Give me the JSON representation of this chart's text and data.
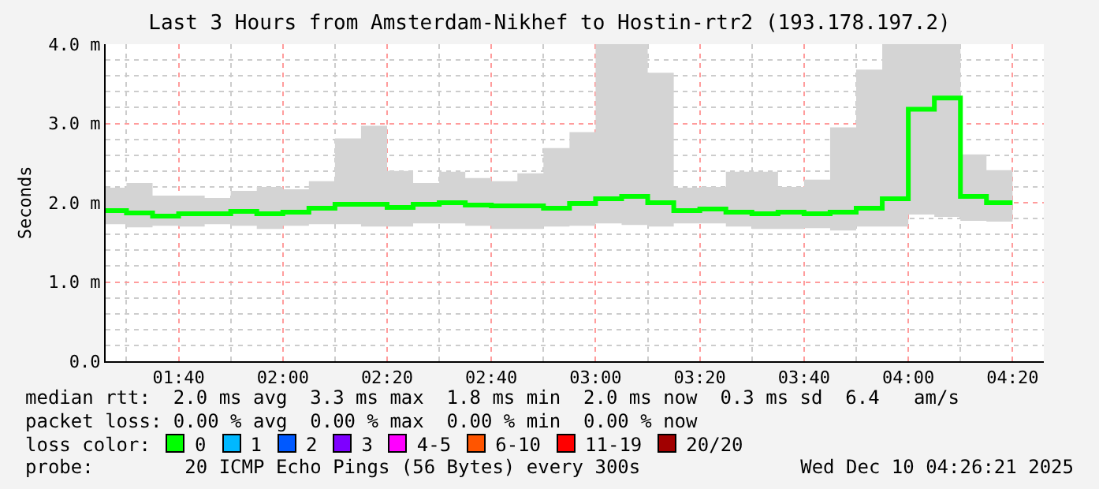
{
  "chart_data": {
    "type": "step",
    "title": "Last 3 Hours from Amsterdam-Nikhef to Hostin-rtr2 (193.178.197.2)",
    "ylabel": "Seconds",
    "x": [
      "2025-12-10T01:30",
      "2025-12-10T01:35",
      "2025-12-10T01:40",
      "2025-12-10T01:45",
      "2025-12-10T01:50",
      "2025-12-10T01:55",
      "2025-12-10T02:00",
      "2025-12-10T02:05",
      "2025-12-10T02:10",
      "2025-12-10T02:15",
      "2025-12-10T02:20",
      "2025-12-10T02:25",
      "2025-12-10T02:30",
      "2025-12-10T02:35",
      "2025-12-10T02:40",
      "2025-12-10T02:45",
      "2025-12-10T02:50",
      "2025-12-10T02:55",
      "2025-12-10T03:00",
      "2025-12-10T03:05",
      "2025-12-10T03:10",
      "2025-12-10T03:15",
      "2025-12-10T03:20",
      "2025-12-10T03:25",
      "2025-12-10T03:30",
      "2025-12-10T03:35",
      "2025-12-10T03:40",
      "2025-12-10T03:45",
      "2025-12-10T03:50",
      "2025-12-10T03:55",
      "2025-12-10T04:00",
      "2025-12-10T04:05",
      "2025-12-10T04:10",
      "2025-12-10T04:15",
      "2025-12-10T04:20"
    ],
    "series": [
      {
        "color": "#00ff00",
        "values": [
          1.9,
          1.87,
          1.83,
          1.86,
          1.86,
          1.89,
          1.86,
          1.88,
          1.93,
          1.98,
          1.98,
          1.94,
          1.98,
          2.0,
          1.97,
          1.96,
          1.96,
          1.93,
          1.99,
          2.05,
          2.08,
          2.0,
          1.9,
          1.92,
          1.88,
          1.86,
          1.88,
          1.86,
          1.88,
          1.93,
          2.05,
          3.18,
          3.32,
          2.08,
          2.0
        ],
        "lower": [
          1.73,
          1.69,
          1.71,
          1.7,
          1.73,
          1.71,
          1.67,
          1.71,
          1.73,
          1.73,
          1.7,
          1.7,
          1.74,
          1.74,
          1.71,
          1.67,
          1.67,
          1.7,
          1.71,
          1.74,
          1.72,
          1.7,
          1.74,
          1.74,
          1.7,
          1.67,
          1.67,
          1.68,
          1.65,
          1.7,
          1.7,
          1.85,
          1.82,
          1.77,
          1.76
        ],
        "upper": [
          2.19,
          2.25,
          2.09,
          2.09,
          2.06,
          2.15,
          2.2,
          2.17,
          2.27,
          2.81,
          2.97,
          2.4,
          2.25,
          2.39,
          2.31,
          2.27,
          2.37,
          2.69,
          2.89,
          4.0,
          4.0,
          3.64,
          2.19,
          2.2,
          2.39,
          2.39,
          2.2,
          2.29,
          2.95,
          3.68,
          4.0,
          4.0,
          4.0,
          2.61,
          2.41
        ]
      }
    ],
    "xlim": [
      "2025-12-10T01:26",
      "2025-12-10T04:26"
    ],
    "xticks": [
      {
        "value": "2025-12-10T01:40",
        "label": "01:40"
      },
      {
        "value": "2025-12-10T02:00",
        "label": "02:00"
      },
      {
        "value": "2025-12-10T02:20",
        "label": "02:20"
      },
      {
        "value": "2025-12-10T02:40",
        "label": "02:40"
      },
      {
        "value": "2025-12-10T03:00",
        "label": "03:00"
      },
      {
        "value": "2025-12-10T03:20",
        "label": "03:20"
      },
      {
        "value": "2025-12-10T03:40",
        "label": "03:40"
      },
      {
        "value": "2025-12-10T04:00",
        "label": "04:00"
      },
      {
        "value": "2025-12-10T04:20",
        "label": "04:20"
      }
    ],
    "ylim": [
      0,
      4.0
    ],
    "yticks": [
      {
        "value": 0,
        "label": "0.0"
      },
      {
        "value": 1.0,
        "label": "1.0 m"
      },
      {
        "value": 2.0,
        "label": "2.0 m"
      },
      {
        "value": 3.0,
        "label": "3.0 m"
      },
      {
        "value": 4.0,
        "label": "4.0 m"
      }
    ],
    "grid": true,
    "annotations": [
      "median rtt:  2.0 ms avg  3.3 ms max  1.8 ms min  2.0 ms now  0.3 ms sd  6.4   am/s",
      "packet loss: 0.00 % avg  0.00 % max  0.00 % min  0.00 % now",
      "loss color:",
      "0",
      "1",
      "2",
      "3",
      "4-5",
      "6-10",
      "11-19",
      "20/20",
      "probe:        20 ICMP Echo Pings (56 Bytes) every 300s",
      "Wed Dec 10 04:26:21 2025"
    ]
  }
}
